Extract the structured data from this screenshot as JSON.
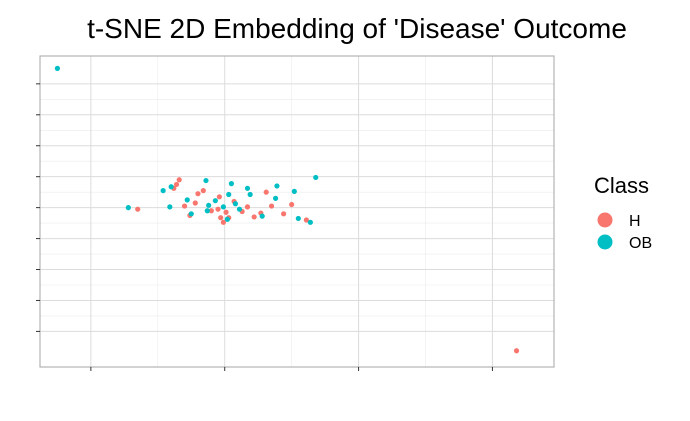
{
  "chart_data": {
    "type": "scatter",
    "title": "t-SNE 2D Embedding of 'Disease' Outcome",
    "xlabel": "",
    "ylabel": "",
    "xlim": [
      -1.9,
      17.3
    ],
    "ylim": [
      -6.3,
      13.8
    ],
    "x_ticks": [
      0,
      5,
      10,
      15
    ],
    "y_ticks": [
      -4,
      -2,
      0,
      2,
      4,
      6,
      8,
      10,
      12
    ],
    "grid": true,
    "legend": {
      "title": "Class",
      "placement": "right",
      "entries": [
        {
          "label": "H",
          "color": "#F8766D"
        },
        {
          "label": "OB",
          "color": "#00BFC4"
        }
      ]
    },
    "series": [
      {
        "name": "H",
        "color": "#F8766D",
        "points": [
          [
            1.75,
            3.9
          ],
          [
            3.1,
            5.25
          ],
          [
            3.2,
            5.5
          ],
          [
            3.3,
            5.8
          ],
          [
            3.5,
            4.1
          ],
          [
            3.7,
            3.5
          ],
          [
            3.9,
            4.3
          ],
          [
            4.0,
            4.9
          ],
          [
            4.2,
            5.1
          ],
          [
            4.5,
            3.8
          ],
          [
            4.75,
            3.9
          ],
          [
            4.8,
            4.7
          ],
          [
            4.85,
            3.35
          ],
          [
            4.95,
            3.05
          ],
          [
            5.05,
            3.7
          ],
          [
            5.15,
            3.35
          ],
          [
            5.35,
            4.4
          ],
          [
            5.65,
            3.75
          ],
          [
            5.85,
            4.05
          ],
          [
            6.1,
            3.4
          ],
          [
            6.35,
            3.65
          ],
          [
            6.55,
            5.0
          ],
          [
            6.75,
            4.1
          ],
          [
            7.2,
            3.6
          ],
          [
            7.5,
            4.2
          ],
          [
            8.05,
            3.2
          ],
          [
            15.9,
            -5.25
          ]
        ]
      },
      {
        "name": "OB",
        "color": "#00BFC4",
        "points": [
          [
            -1.25,
            13.0
          ],
          [
            1.4,
            4.0
          ],
          [
            2.7,
            5.1
          ],
          [
            2.95,
            4.05
          ],
          [
            3.0,
            5.35
          ],
          [
            3.6,
            4.5
          ],
          [
            3.75,
            3.6
          ],
          [
            4.4,
            4.15
          ],
          [
            4.35,
            3.8
          ],
          [
            4.3,
            5.75
          ],
          [
            4.65,
            4.45
          ],
          [
            4.95,
            4.05
          ],
          [
            5.1,
            3.25
          ],
          [
            5.15,
            4.85
          ],
          [
            5.25,
            5.55
          ],
          [
            5.4,
            4.25
          ],
          [
            5.55,
            3.9
          ],
          [
            5.85,
            5.25
          ],
          [
            5.95,
            4.85
          ],
          [
            6.4,
            3.45
          ],
          [
            6.9,
            4.6
          ],
          [
            6.95,
            5.4
          ],
          [
            7.6,
            5.05
          ],
          [
            7.75,
            3.3
          ],
          [
            8.2,
            3.05
          ],
          [
            8.4,
            5.95
          ]
        ]
      }
    ]
  }
}
